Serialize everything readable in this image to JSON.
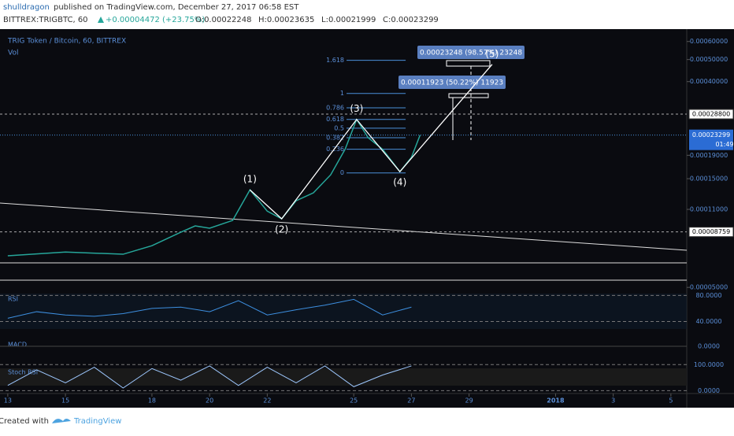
{
  "header": {
    "author": "shulldragon",
    "published": "published on TradingView.com, December 27, 2017 06:58 EST",
    "symbol": "BITTREX:TRIGBTC, 60",
    "change": "+0.00004472 (+23.75%)",
    "ohlc": [
      "O:0.00022248",
      "H:0.00023635",
      "L:0.00021999",
      "C:0.00023299"
    ]
  },
  "chart_data": {
    "type": "line",
    "title": "TRIG Token / Bitcoin, 60, BITTREX",
    "volume_label": "Vol",
    "color": "#26a69a",
    "log_scale": true,
    "x": [
      13,
      15,
      17,
      18,
      19,
      19.5,
      20,
      20.8,
      21.4,
      22,
      22.5,
      23,
      23.6,
      24.2,
      24.7,
      25.1,
      25.5,
      26,
      26.6,
      27,
      27.3
    ],
    "values": [
      6.88e-05,
      7.15e-05,
      6.99e-05,
      7.62e-05,
      8.73e-05,
      9.31e-05,
      9.09e-05,
      9.84e-05,
      0.000134,
      0.000108,
      0.0001,
      0.00012,
      0.00013,
      0.000156,
      0.000202,
      0.000273,
      0.000227,
      0.000202,
      0.000161,
      0.000186,
      0.00023299
    ],
    "xlim": [
      12.73,
      36.55
    ],
    "xticks": [
      13,
      15,
      18,
      20,
      22,
      25,
      27,
      29,
      {
        "value": 32,
        "label": "2018"
      },
      {
        "value": 34,
        "label": "3"
      },
      {
        "value": 36,
        "label": "5"
      }
    ],
    "ylim": [
      5.21e-05,
      0.00068
    ],
    "yticks": [
      {
        "value": 0.0006,
        "label": "0.00060000"
      },
      {
        "value": 0.0005,
        "label": "0.00050000"
      },
      {
        "value": 0.0004,
        "label": "0.00040000"
      },
      {
        "value": 0.00019,
        "label": "0.00019000"
      },
      {
        "value": 0.00015,
        "label": "0.00015000"
      },
      {
        "value": 0.00011,
        "label": "0.00011000"
      },
      {
        "value": 5e-05,
        "label": "0.00005000"
      }
    ],
    "price_lines": [
      {
        "value": 0.000288,
        "label": "0.00028800"
      },
      {
        "value": 8.759e-05,
        "label": "0.00008759"
      }
    ],
    "last_price": {
      "value": 0.00023299,
      "label": "0.00023299"
    },
    "countdown": "01:49",
    "annotations": [
      {
        "text": "(1)",
        "x": 21.4,
        "y": 0.000134
      },
      {
        "text": "(2)",
        "x": 22.5,
        "y": 0.0001
      },
      {
        "text": "(3)",
        "x": 25.1,
        "y": 0.000273
      },
      {
        "text": "(4)",
        "x": 26.6,
        "y": 0.000161
      },
      {
        "text": "(5)",
        "x": 29.8,
        "y": 0.000476
      }
    ],
    "fib_levels": [
      {
        "ratio": 1.618,
        "price": 0.000496
      },
      {
        "ratio": 1,
        "price": 0.000355
      },
      {
        "ratio": 0.786,
        "price": 0.000307
      },
      {
        "ratio": 0.618,
        "price": 0.000273
      },
      {
        "ratio": 0.5,
        "price": 0.00025
      },
      {
        "ratio": 0.382,
        "price": 0.000227
      },
      {
        "ratio": 0.236,
        "price": 0.000202
      },
      {
        "ratio": 0,
        "price": 0.000159
      }
    ],
    "fib_x": [
      24.75,
      26.8
    ],
    "measures": [
      "0.00011923 (50.22%) 11923",
      "0.00023248 (98.57%) 23248"
    ],
    "rsi": {
      "name": "RSI",
      "x": [
        13,
        14,
        15,
        16,
        17,
        18,
        19,
        20,
        21,
        22,
        23,
        24,
        25,
        26,
        27
      ],
      "values": [
        45,
        55,
        50,
        48,
        52,
        60,
        62,
        55,
        72,
        50,
        58,
        65,
        74,
        50,
        62
      ],
      "ylim": [
        20,
        95
      ],
      "yticks": [
        {
          "value": 80,
          "label": "80.0000"
        },
        {
          "value": 40,
          "label": "40.0000"
        }
      ]
    },
    "macd": {
      "name": "MACD",
      "yticks": [
        {
          "value": 0,
          "label": "0.0000"
        }
      ]
    },
    "stoch": {
      "name": "Stoch RSI",
      "x": [
        13,
        14,
        15,
        16,
        17,
        18,
        19,
        20,
        21,
        22,
        23,
        24,
        25,
        26,
        27
      ],
      "values": [
        20,
        80,
        30,
        90,
        10,
        85,
        40,
        95,
        20,
        90,
        30,
        95,
        15,
        60,
        95
      ],
      "ylim": [
        -5,
        110
      ],
      "yticks": [
        {
          "value": 100,
          "label": "100.0000"
        },
        {
          "value": 0,
          "label": "0.0000"
        }
      ]
    }
  },
  "footer": {
    "created": "Created with",
    "brand": "TradingView"
  }
}
